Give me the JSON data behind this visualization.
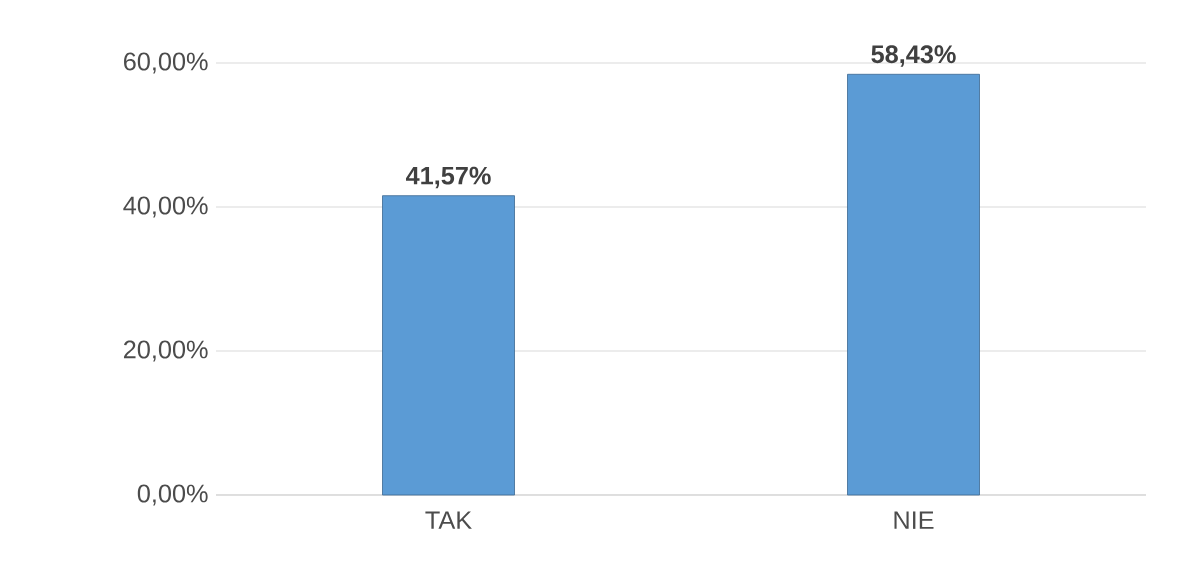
{
  "chart_data": {
    "type": "bar",
    "categories": [
      "TAK",
      "NIE"
    ],
    "values": [
      41.57,
      58.43
    ],
    "color": "#5b9bd5",
    "value_labels": [
      "41,57%",
      "58,43%"
    ],
    "ylim": [
      0,
      60
    ],
    "yticks": [
      {
        "value": 0,
        "label": "0,00%"
      },
      {
        "value": 20,
        "label": "20,00%"
      },
      {
        "value": 40,
        "label": "40,00%"
      },
      {
        "value": 60,
        "label": "60,00%"
      }
    ],
    "grid": "y"
  }
}
